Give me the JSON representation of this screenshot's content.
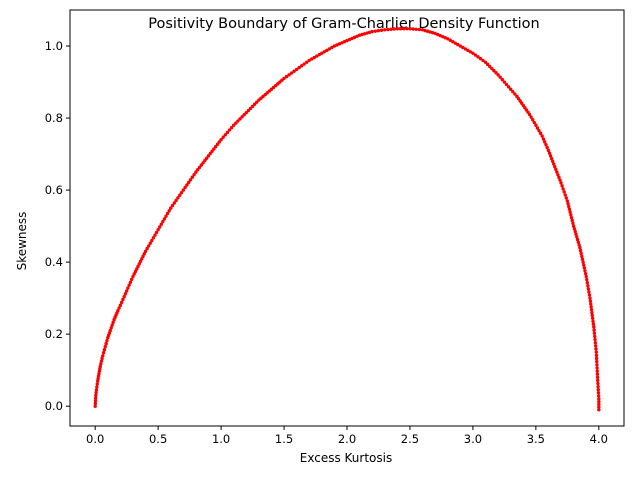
{
  "chart_data": {
    "type": "scatter",
    "title": "Positivity Boundary of Gram-Charlier Density Function",
    "xlabel": "Excess Kurtosis",
    "ylabel": "Skewness",
    "xlim": [
      -0.2,
      4.2
    ],
    "ylim": [
      -0.055,
      1.1
    ],
    "xticks": [
      0.0,
      0.5,
      1.0,
      1.5,
      2.0,
      2.5,
      3.0,
      3.5,
      4.0
    ],
    "xtick_labels": [
      "0.0",
      "0.5",
      "1.0",
      "1.5",
      "2.0",
      "2.5",
      "3.0",
      "3.5",
      "4.0"
    ],
    "yticks": [
      0.0,
      0.2,
      0.4,
      0.6,
      0.8,
      1.0
    ],
    "ytick_labels": [
      "0.0",
      "0.2",
      "0.4",
      "0.6",
      "0.8",
      "1.0"
    ],
    "grid": false,
    "marker_color": "#ff0000",
    "series": [
      {
        "x": [
          0.0,
          0.005,
          0.01,
          0.02,
          0.03,
          0.04,
          0.05,
          0.06,
          0.08,
          0.1,
          0.12,
          0.15,
          0.18,
          0.2,
          0.25,
          0.3,
          0.35,
          0.4,
          0.45,
          0.5,
          0.55,
          0.6,
          0.7,
          0.8,
          0.9,
          1.0,
          1.1,
          1.2,
          1.3,
          1.4,
          1.5,
          1.6,
          1.7,
          1.8,
          1.9,
          2.0,
          2.1,
          2.2,
          2.3,
          2.4,
          2.5,
          2.6,
          2.7,
          2.8,
          2.9,
          3.0,
          3.1,
          3.2,
          3.3,
          3.35,
          3.4,
          3.45,
          3.5,
          3.55,
          3.6,
          3.65,
          3.7,
          3.75,
          3.8,
          3.85,
          3.9,
          3.93,
          3.96,
          3.98,
          3.99,
          4.0,
          4.0
        ],
        "y": [
          0.0,
          0.03,
          0.045,
          0.07,
          0.09,
          0.11,
          0.125,
          0.14,
          0.165,
          0.19,
          0.21,
          0.24,
          0.265,
          0.28,
          0.32,
          0.36,
          0.395,
          0.43,
          0.46,
          0.49,
          0.52,
          0.55,
          0.6,
          0.65,
          0.695,
          0.74,
          0.78,
          0.815,
          0.85,
          0.88,
          0.91,
          0.935,
          0.96,
          0.98,
          1.0,
          1.015,
          1.03,
          1.04,
          1.045,
          1.048,
          1.048,
          1.045,
          1.035,
          1.02,
          1.0,
          0.98,
          0.955,
          0.92,
          0.88,
          0.86,
          0.835,
          0.81,
          0.78,
          0.75,
          0.71,
          0.665,
          0.62,
          0.57,
          0.5,
          0.44,
          0.36,
          0.3,
          0.22,
          0.15,
          0.08,
          0.02,
          -0.01
        ]
      }
    ]
  }
}
